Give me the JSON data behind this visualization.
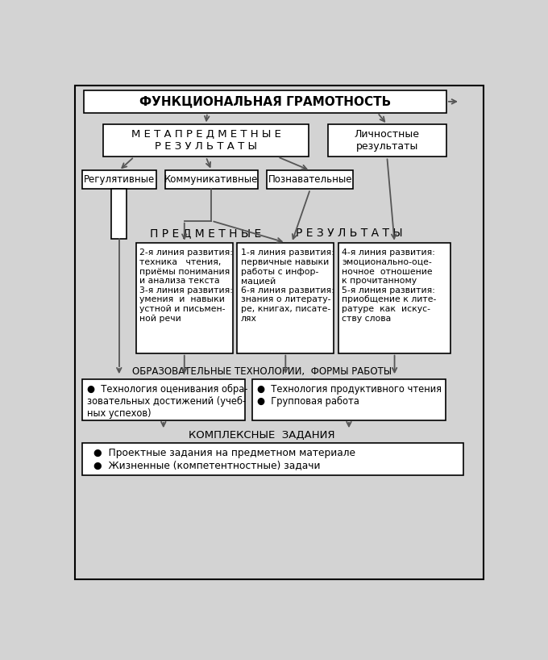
{
  "bg_color": "#d3d3d3",
  "box_fill": "#ffffff",
  "box_edge": "#000000",
  "title": "ФУНКЦИОНАЛЬНАЯ ГРАМОТНОСТЬ",
  "meta_title": "М Е Т А П Р Е Д М Е Т Н Ы Е\nР Е З У Л Ь Т А Т Ы",
  "personal_title": "Личностные\nрезультаты",
  "reg_title": "Регулятивные",
  "comm_title": "Коммуникативные",
  "cogn_title": "Познавательные",
  "predm_label": "П Р Е Д М Е Т Н Ы Е",
  "result_label": "Р Е З У Л Ь Т А Т Ы",
  "box1_text": "2-я линия развития:\nтехника   чтения,\nприёмы понимания\nи анализа текста\n3-я линия развития:\nумения  и  навыки\nустной и письмен-\nной речи",
  "box2_text": "1-я линия развития:\nпервичные навыки\nработы с инфор-\nмацией\n6-я линия развития:\nзнания о литерату-\nре, книгах, писате-\nлях",
  "box3_text": "4-я линия развития:\nэмоционально-оце-\nночное  отношение\nк прочитанному\n5-я линия развития:\nприобщение к лите-\nратуре  как  искус-\nству слова",
  "edu_label": "ОБРАЗОВАТЕЛЬНЫЕ ТЕХНОЛОГИИ,  ФОРМЫ РАБОТЫ",
  "edu_box1_text": "●  Технология оценивания обра-\nзовательных достижений (учеб-\nных успехов)",
  "edu_box2_text": "●  Технология продуктивного чтения\n●  Групповая работа",
  "complex_label": "КОМПЛЕКСНЫЕ  ЗАДАНИЯ",
  "complex_box_text": "●  Проектные задания на предметном материале\n●  Жизненные (компетентностные) задачи",
  "arrow_color": "#555555",
  "line_color": "#555555"
}
